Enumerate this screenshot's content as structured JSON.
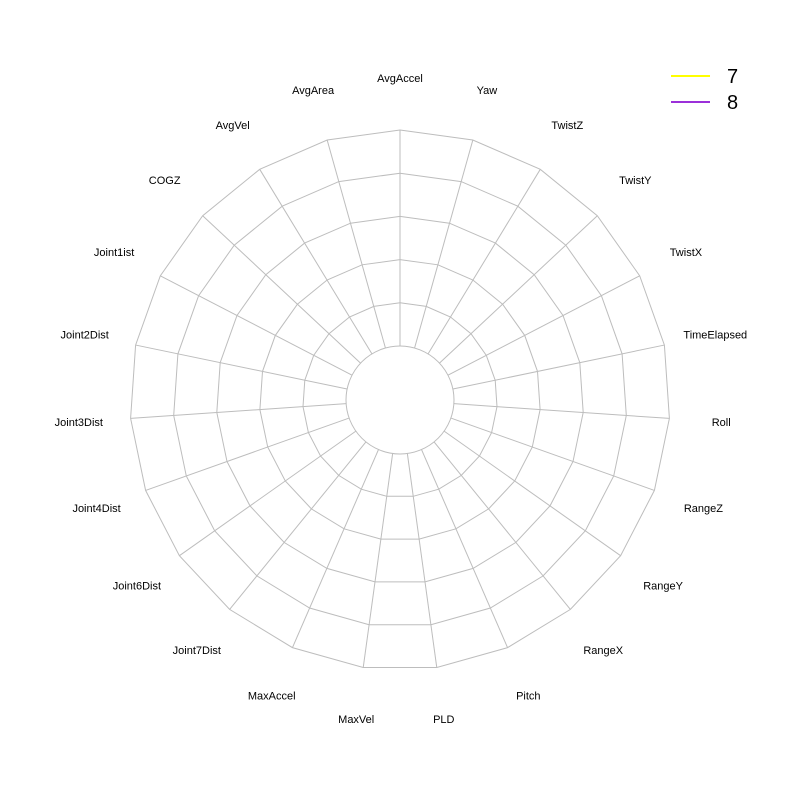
{
  "chart_data": {
    "type": "radar",
    "title": "",
    "axes": [
      "AvgAccel",
      "Yaw",
      "TwistZ",
      "TwistY",
      "TwistX",
      "TimeElapsed",
      "Roll",
      "RangeZ",
      "RangeY",
      "RangeX",
      "Pitch",
      "PLD",
      "MaxVel",
      "MaxAccel",
      "Joint7Dist",
      "Joint6Dist",
      "Joint4Dist",
      "Joint3Dist",
      "Joint2Dist",
      "Joint1ist",
      "COGZ",
      "AvgVel",
      "AvgArea"
    ],
    "grid_levels": 5,
    "legend_position": "top-right",
    "series": [
      {
        "name": "7",
        "color": "#ffff00",
        "values": []
      },
      {
        "name": "8",
        "color": "#9b30d9",
        "values": []
      }
    ]
  }
}
